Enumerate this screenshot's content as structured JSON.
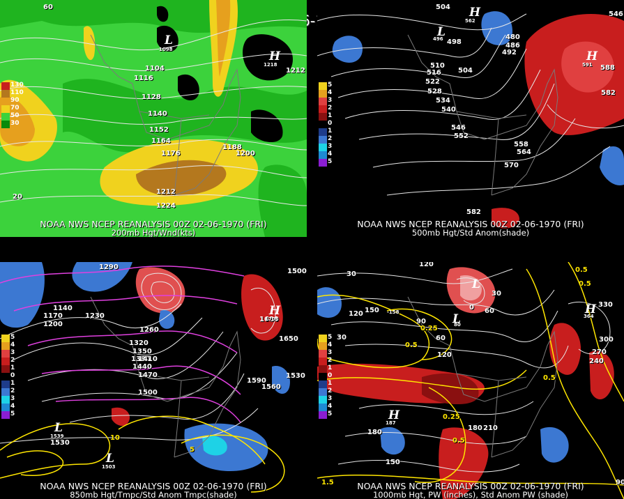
{
  "main_title": "00Z 02-06-1970 (FRI)",
  "panels": [
    {
      "caption_line1": "NOAA NWS NCEP REANALYSIS 00Z 02-06-1970 (FRI)",
      "caption_line2": "200mb Hgt/Wnd(kts)",
      "legend": [
        "130",
        "110",
        "90",
        "70",
        "50",
        "30"
      ],
      "contour_labels": [
        "1104",
        "1116",
        "1128",
        "1140",
        "1152",
        "1164",
        "1176",
        "1188",
        "1200",
        "1212",
        "1224",
        "1212",
        "60",
        "20"
      ],
      "centers": [
        {
          "symbol": "L",
          "value": "1098"
        },
        {
          "symbol": "H",
          "value": "1218"
        }
      ]
    },
    {
      "caption_line1": "NOAA NWS NCEP REANALYSIS 00Z 02-06-1970 (FRI)",
      "caption_line2": "500mb Hgt/Std Anom(shade)",
      "legend": [
        "5",
        "4",
        "3",
        "2",
        "1",
        "0",
        "1",
        "2",
        "3",
        "4",
        "5"
      ],
      "contour_labels": [
        "504",
        "498",
        "492",
        "486",
        "480",
        "510",
        "516",
        "504",
        "522",
        "528",
        "534",
        "540",
        "546",
        "552",
        "558",
        "564",
        "570",
        "582",
        "588",
        "582",
        "546"
      ],
      "centers": [
        {
          "symbol": "H",
          "value": "562"
        },
        {
          "symbol": "L",
          "value": "496"
        },
        {
          "symbol": "H",
          "value": "591"
        }
      ]
    },
    {
      "caption_line1": "NOAA NWS NCEP REANALYSIS 00Z 02-06-1970 (FRI)",
      "caption_line2": "850mb Hgt/Tmpc/Std Anom Tmpc(shade)",
      "legend": [
        "5",
        "4",
        "3",
        "2",
        "1",
        "0",
        "1",
        "2",
        "3",
        "4",
        "5"
      ],
      "contour_labels": [
        "1290",
        "1140",
        "1170",
        "1200",
        "1230",
        "1260",
        "1320",
        "1350",
        "1380",
        "1440",
        "1410",
        "1470",
        "1500",
        "1500",
        "1680",
        "1650",
        "1590",
        "1560",
        "1530",
        "1530",
        "10",
        "5"
      ],
      "centers": [
        {
          "symbol": "H",
          "value": "1706"
        },
        {
          "symbol": "L",
          "value": "1539"
        },
        {
          "symbol": "L",
          "value": "1503"
        }
      ]
    },
    {
      "caption_line1": "NOAA NWS NCEP REANALYSIS 00Z 02-06-1970 (FRI)",
      "caption_line2": "1000mb Hgt, PW (inches), Std Anom PW (shade)",
      "legend": [
        "5",
        "4",
        "3",
        "2",
        "1",
        "0",
        "1",
        "2",
        "3",
        "4",
        "5"
      ],
      "contour_labels": [
        "120",
        "30",
        "30",
        "0",
        "150",
        "120",
        "90",
        "60",
        "30",
        "60",
        "0.5",
        "0.25",
        "120",
        "300",
        "330",
        "270",
        "240",
        "0.5",
        "0.5",
        "0.25",
        "180",
        "210",
        "0.5",
        "180",
        "150",
        "1.5",
        "90",
        "0.5"
      ],
      "centers": [
        {
          "symbol": "L",
          "value": "-158"
        },
        {
          "symbol": "H",
          "value": "364"
        },
        {
          "symbol": "H",
          "value": "187"
        },
        {
          "symbol": "L",
          "value": "80"
        }
      ]
    }
  ],
  "colors": {
    "wind_greens": [
      "#0a8a0a",
      "#1fb41f",
      "#3cd23c",
      "#66e63c"
    ],
    "wind_yellow": "#f0d21e",
    "wind_orange": "#e6a01e",
    "wind_brown": "#b4781e",
    "anom_red": "#c81e1e",
    "anom_blue": "#3c78d2",
    "temp_magenta": "#e040e0",
    "pw_yellow": "#ffe600"
  }
}
